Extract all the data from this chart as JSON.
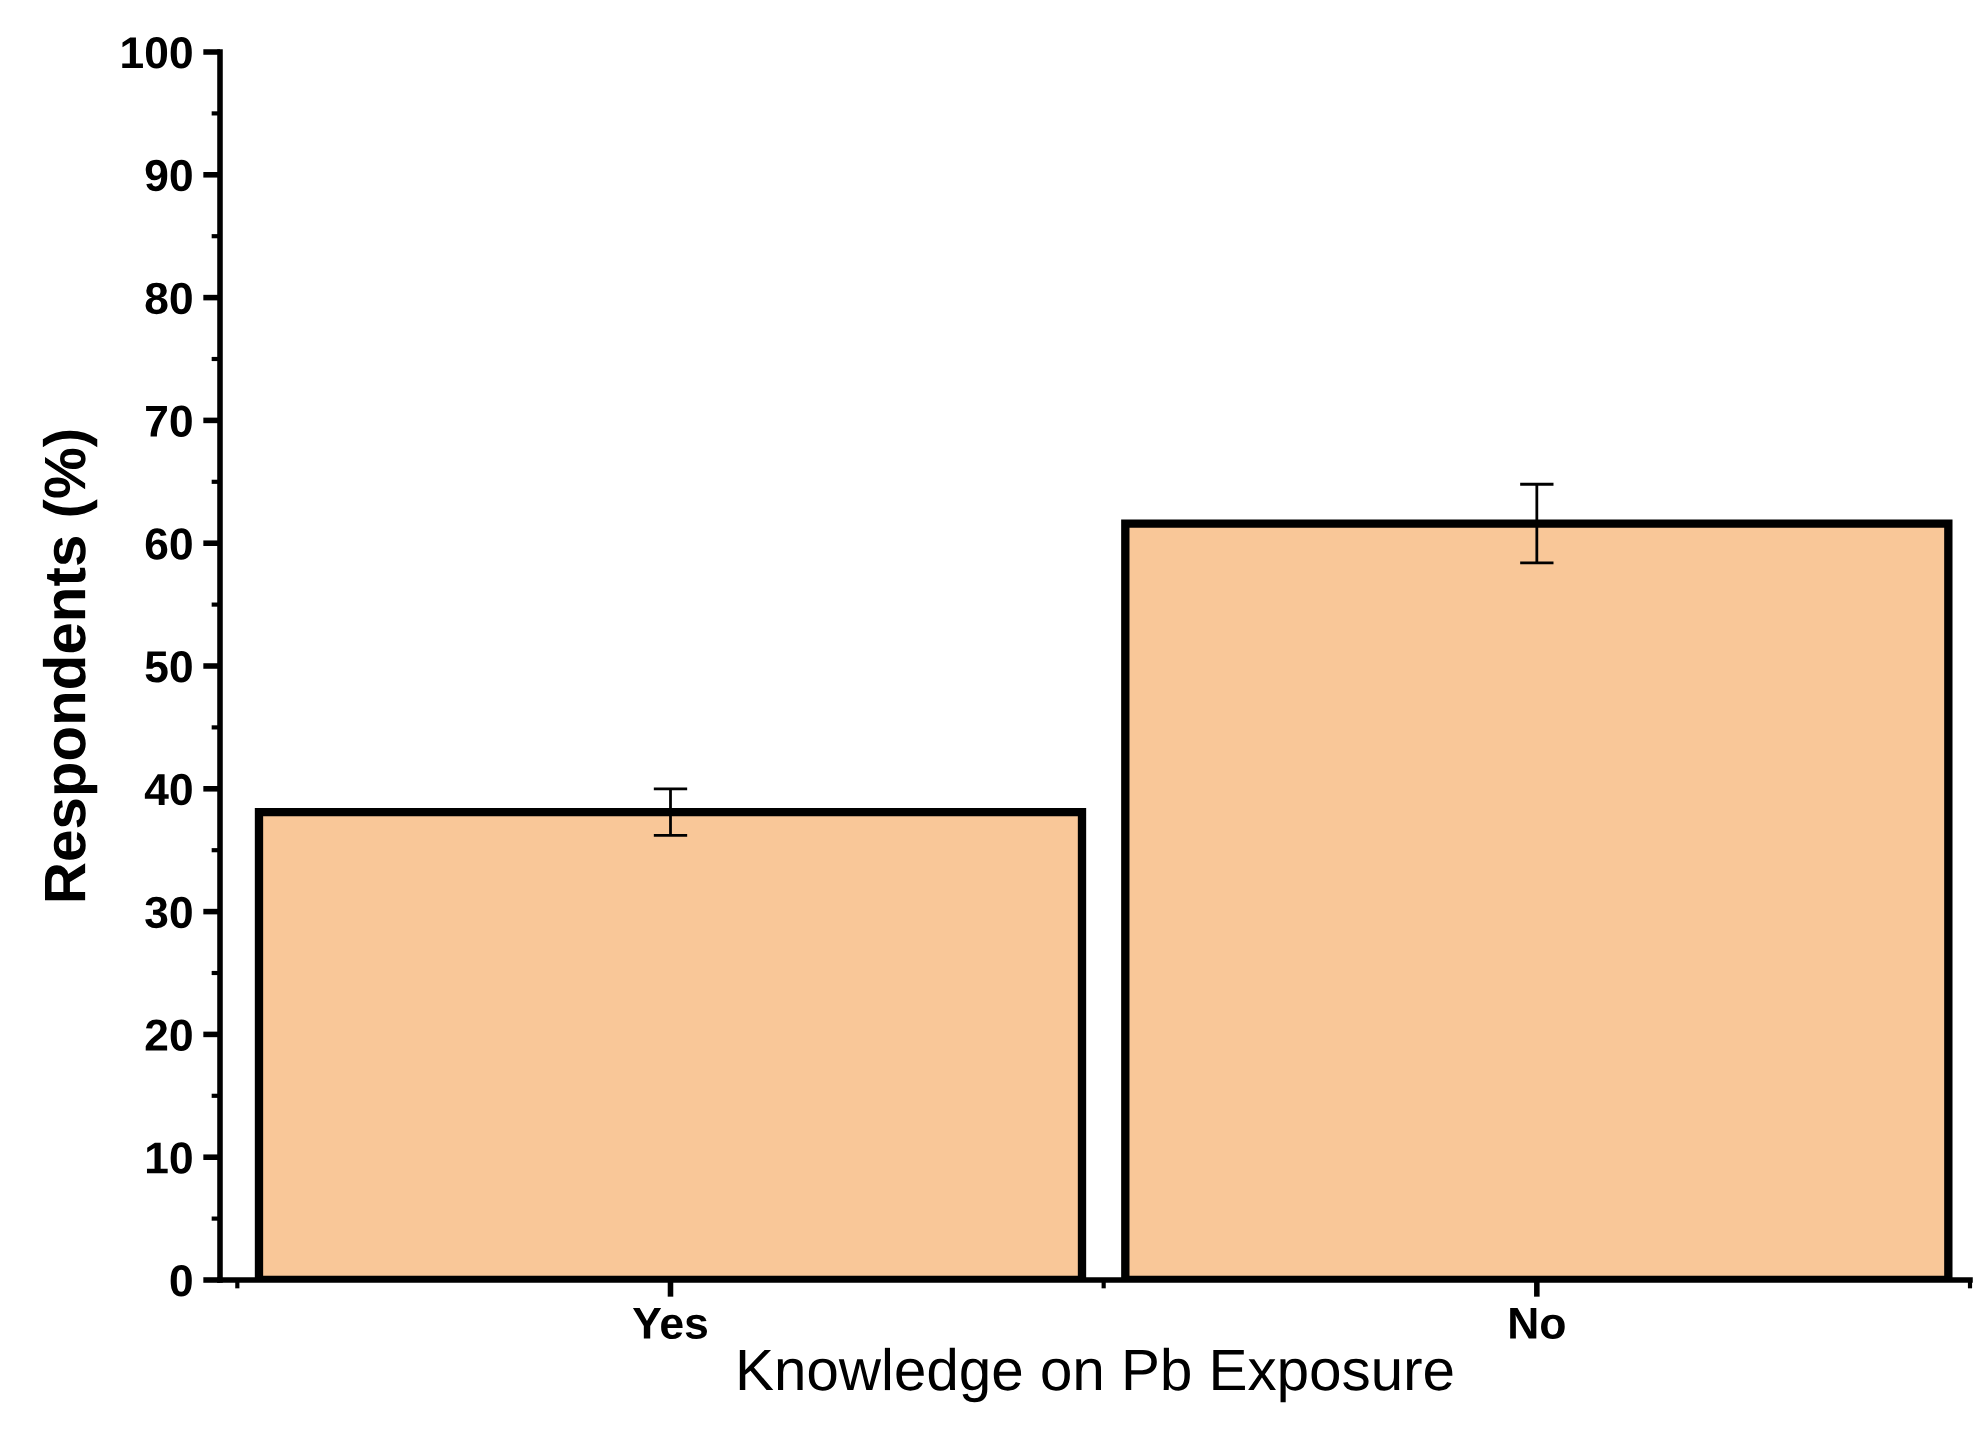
{
  "chart_data": {
    "type": "bar",
    "xlabel": "Knowledge on Pb Exposure",
    "ylabel": "Respondents (%)",
    "categories": [
      "Yes",
      "No"
    ],
    "values": [
      38.1,
      61.6
    ],
    "errors": [
      1.9,
      3.2
    ],
    "color": "#f9c798",
    "ylim": [
      0,
      100
    ],
    "yticks": [
      0,
      10,
      20,
      30,
      40,
      50,
      60,
      70,
      80,
      90,
      100
    ],
    "grid": false,
    "legend": false
  }
}
